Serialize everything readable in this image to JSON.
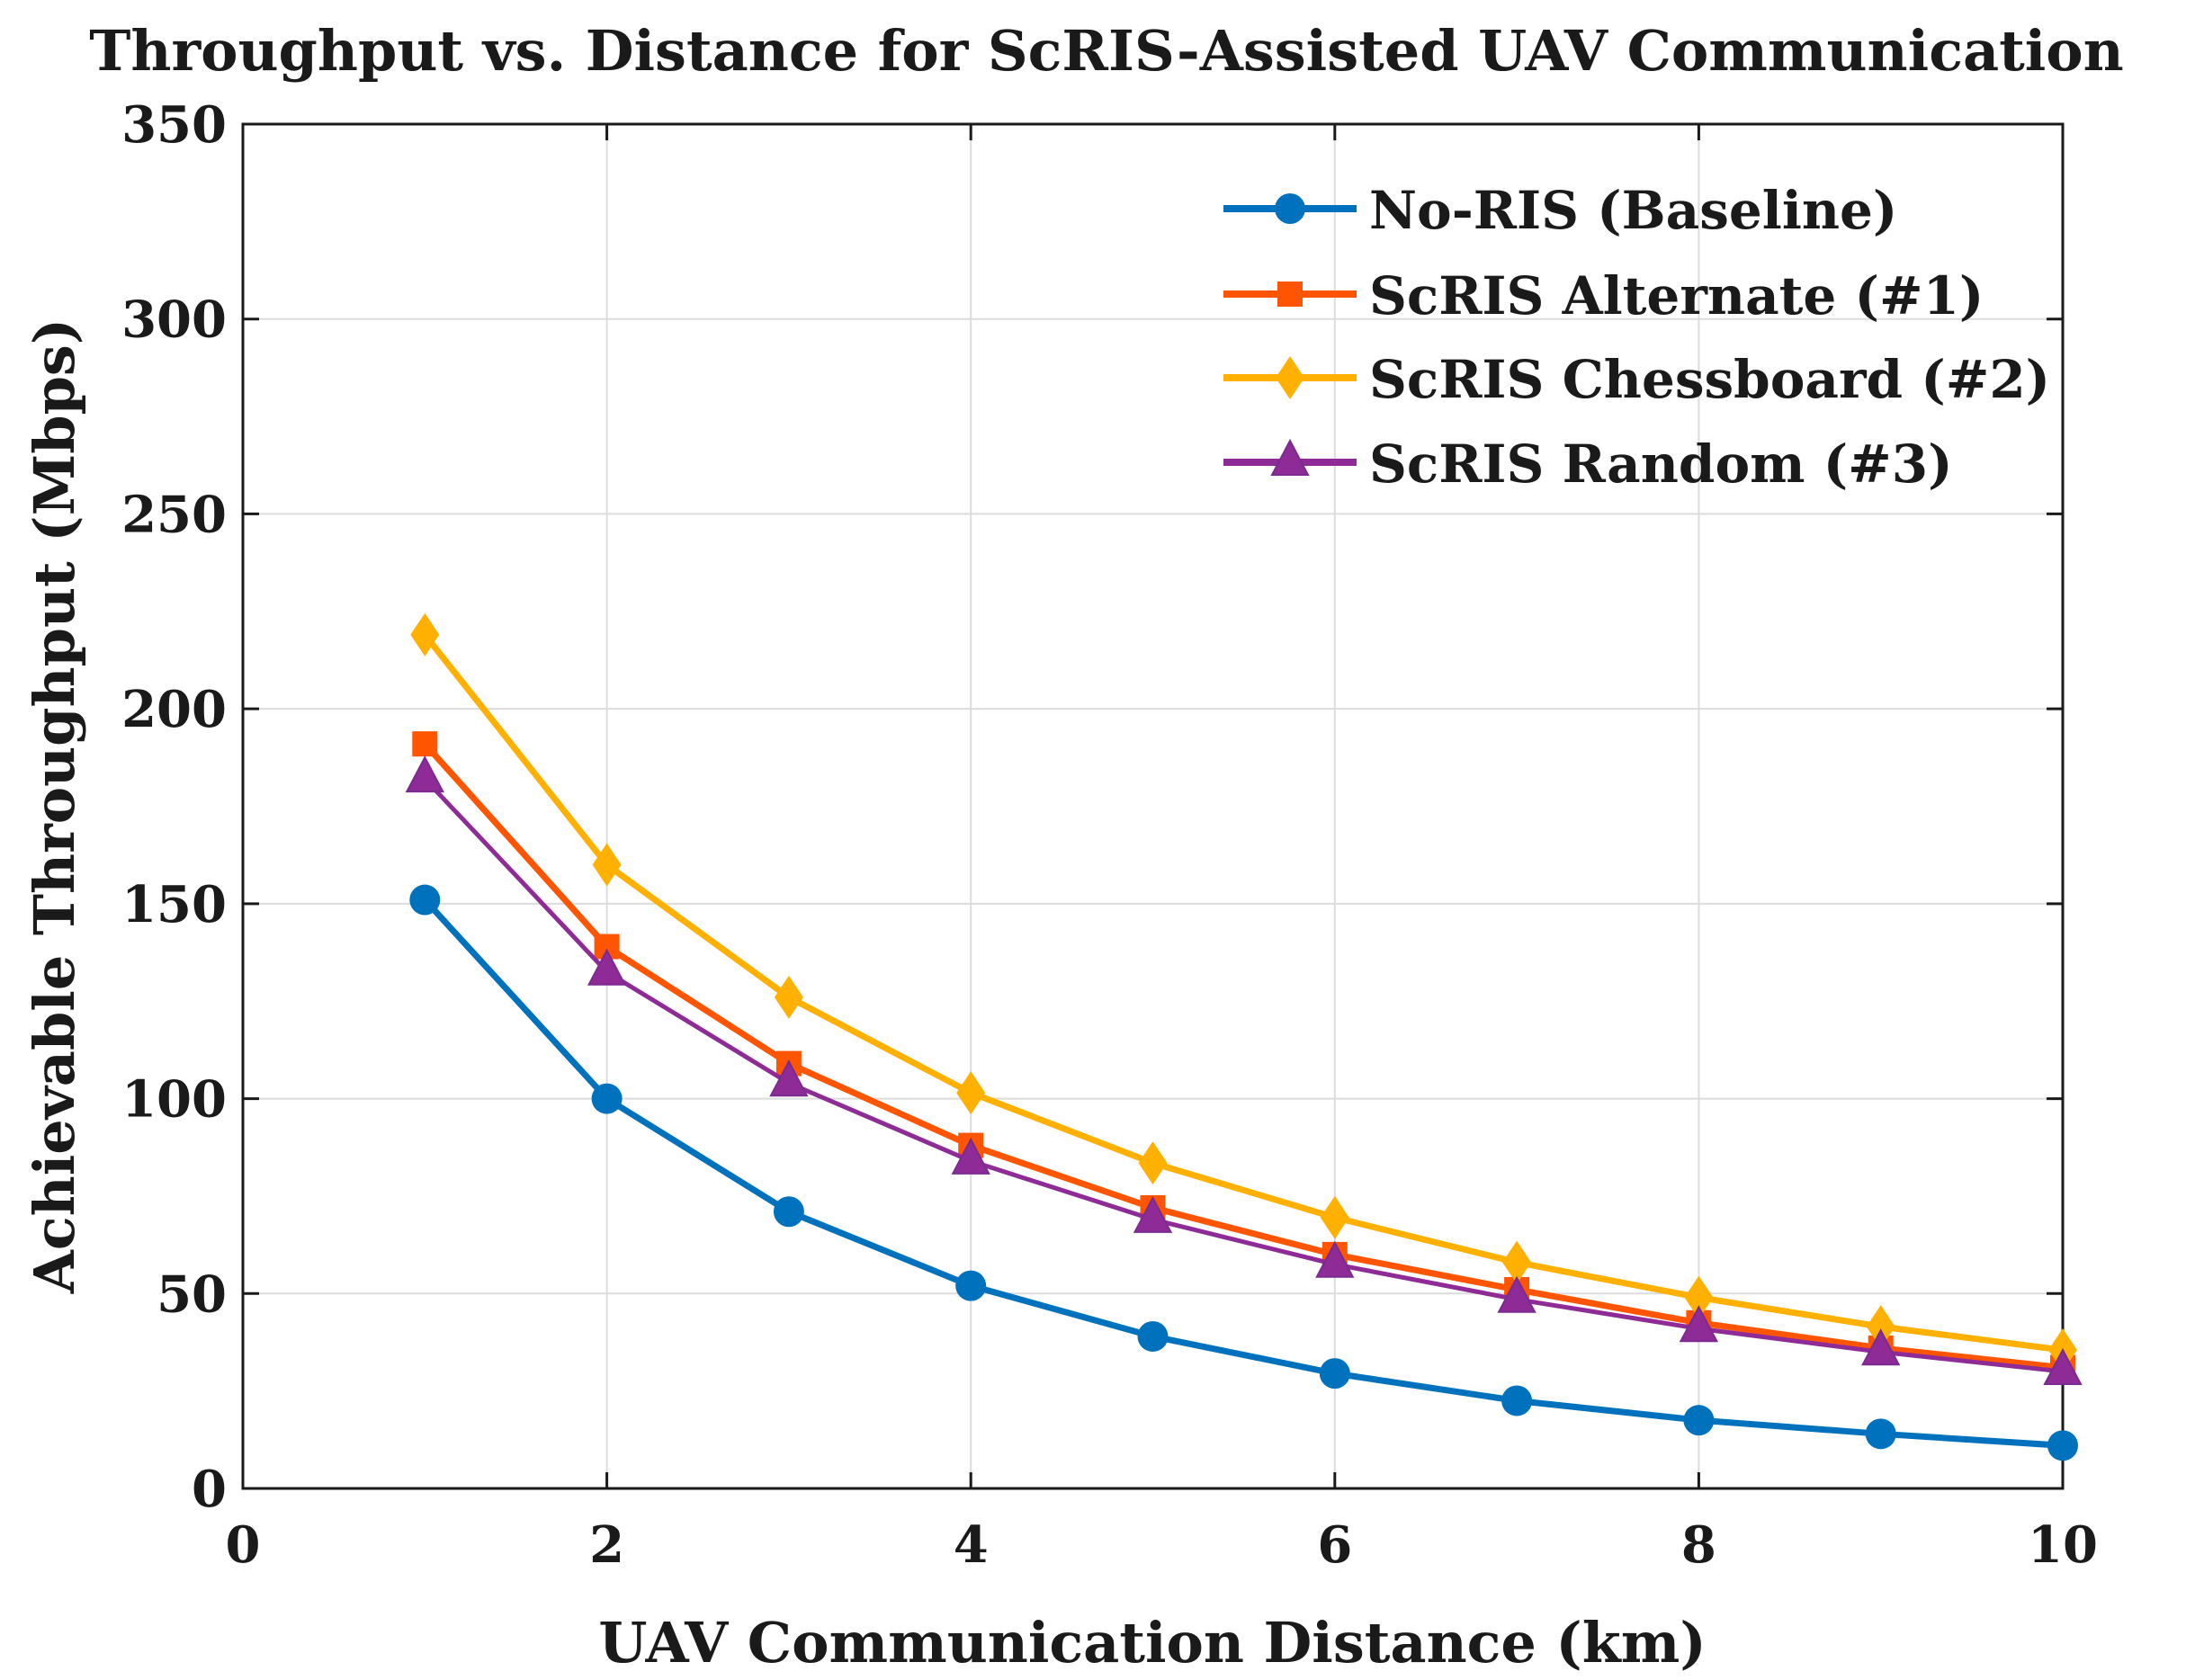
{
  "chart_data": {
    "type": "line",
    "title": "Throughput vs. Distance for ScRIS-Assisted UAV Communication",
    "xlabel": "UAV Communication Distance (km)",
    "ylabel": "Achievable Throughput (Mbps)",
    "xlim": [
      0,
      10
    ],
    "ylim": [
      0,
      350
    ],
    "xticks": [
      0,
      2,
      4,
      6,
      8,
      10
    ],
    "yticks": [
      0,
      50,
      100,
      150,
      200,
      250,
      300,
      350
    ],
    "grid": true,
    "legend_position": "top-right",
    "x": [
      1,
      2,
      3,
      4,
      5,
      6,
      7,
      8,
      9,
      10
    ],
    "series": [
      {
        "name": "No-RIS (Baseline)",
        "color": "#0072BD",
        "marker": "circle",
        "values": [
          151,
          100,
          71,
          52,
          39,
          29.5,
          22.5,
          17.5,
          14,
          11
        ]
      },
      {
        "name": "ScRIS Alternate (#1)",
        "color": "#FF5500",
        "marker": "square",
        "values": [
          191,
          139,
          109,
          88,
          72,
          60,
          51,
          42.5,
          36,
          31
        ]
      },
      {
        "name": "ScRIS Chessboard (#2)",
        "color": "#FFB000",
        "marker": "diamond",
        "values": [
          219,
          160,
          126,
          101.5,
          83.5,
          69.5,
          58,
          49,
          41.5,
          35.5
        ]
      },
      {
        "name": "ScRIS Random (#3)",
        "color": "#8E2B96",
        "marker": "triangle",
        "values": [
          182,
          132.5,
          104,
          84,
          69,
          57.5,
          48.5,
          41,
          35,
          30
        ]
      }
    ]
  }
}
